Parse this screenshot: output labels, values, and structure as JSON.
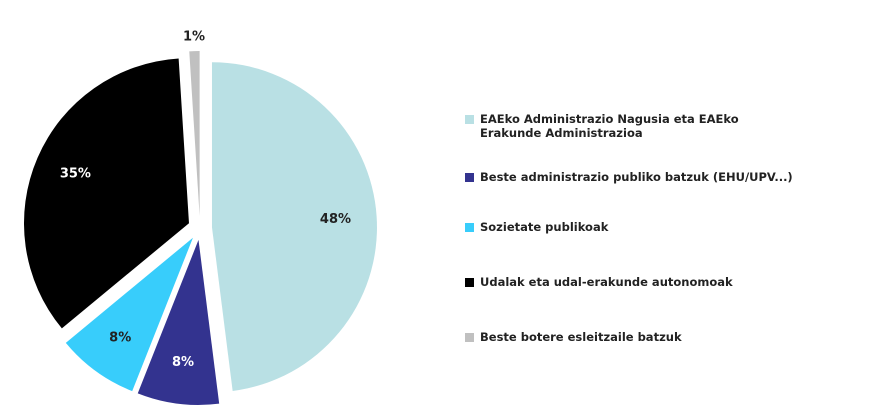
{
  "chart_data": {
    "type": "pie",
    "categories": [
      "EAEko Administrazio Nagusia eta EAEko Erakunde Administrazioa",
      "Beste administrazio publiko batzuk (EHU/UPV...)",
      "Sozietate publikoak",
      "Udalak eta udal-erakunde autonomoak",
      "Beste botere esleitzaile batzuk"
    ],
    "values": [
      48,
      8,
      8,
      35,
      1
    ],
    "value_labels": [
      "48%",
      "8%",
      "8%",
      "35%",
      "1%"
    ],
    "colors": [
      "#b9e0e4",
      "#33338f",
      "#38cdfb",
      "#000000",
      "#c0c0c0"
    ],
    "legend": "right"
  }
}
